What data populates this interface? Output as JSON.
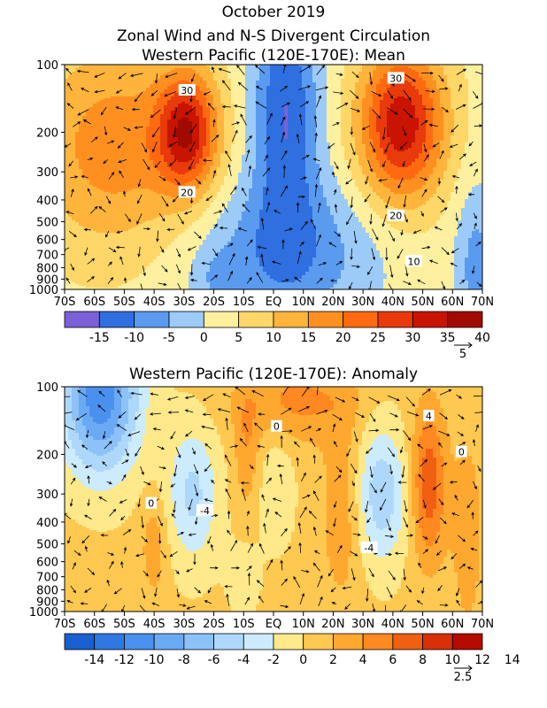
{
  "header": {
    "title1": "October 2019",
    "title2": "Zonal Wind and N-S Divergent Circulation",
    "title3": "Western Pacific (120E-170E): Mean"
  },
  "colors": {
    "mean": [
      "#7b60d8",
      "#2f6fe0",
      "#5a9bf0",
      "#9ccbf8",
      "#fff0a0",
      "#ffd768",
      "#ffb43c",
      "#ff9020",
      "#ff6a10",
      "#e83a0a",
      "#c81400",
      "#a00a00"
    ],
    "anom": [
      "#1a5fcf",
      "#2f77e3",
      "#4a90ee",
      "#6aaaf4",
      "#8dc2f8",
      "#aed8fb",
      "#ccebfd",
      "#ffe98a",
      "#ffc850",
      "#ffa830",
      "#ff8820",
      "#f06010",
      "#d83008",
      "#b40a00"
    ]
  },
  "chart_data": [
    {
      "type": "heatmap",
      "title": "Western Pacific (120E-170E): Mean",
      "x": [
        "70S",
        "60S",
        "50S",
        "40S",
        "30S",
        "20S",
        "10S",
        "EQ",
        "10N",
        "20N",
        "30N",
        "40N",
        "50N",
        "60N",
        "70N"
      ],
      "y_ticks": [
        100,
        200,
        300,
        400,
        500,
        600,
        700,
        800,
        900,
        1000
      ],
      "xlim": [
        -70,
        70
      ],
      "ylim": [
        1000,
        100
      ],
      "y_scale": "log-pressure",
      "contour_labels": [
        {
          "lat": -29,
          "p": 130,
          "text": "30"
        },
        {
          "lat": -29,
          "p": 370,
          "text": "20"
        },
        {
          "lat": 41,
          "p": 115,
          "text": "30"
        },
        {
          "lat": 41,
          "p": 470,
          "text": "20"
        },
        {
          "lat": 47,
          "p": 750,
          "text": "10"
        }
      ],
      "colorbar": {
        "labels": [
          "-15",
          "-10",
          "-5",
          "0",
          "5",
          "10",
          "15",
          "20",
          "25",
          "30",
          "35",
          "40"
        ],
        "values": [
          -15,
          -10,
          -5,
          0,
          5,
          10,
          15,
          20,
          25,
          30,
          35,
          40
        ]
      },
      "vector_ref": "5"
    },
    {
      "type": "heatmap",
      "title": "Western Pacific (120E-170E): Anomaly",
      "x": [
        "70S",
        "60S",
        "50S",
        "40S",
        "30S",
        "20S",
        "10S",
        "EQ",
        "10N",
        "20N",
        "30N",
        "40N",
        "50N",
        "60N",
        "70N"
      ],
      "y_ticks": [
        100,
        200,
        300,
        400,
        500,
        600,
        700,
        800,
        900,
        1000
      ],
      "xlim": [
        -70,
        70
      ],
      "ylim": [
        1000,
        100
      ],
      "y_scale": "log-pressure",
      "contour_labels": [
        {
          "lat": -41,
          "p": 330,
          "text": "0"
        },
        {
          "lat": -23,
          "p": 355,
          "text": "-4"
        },
        {
          "lat": 1,
          "p": 150,
          "text": "0"
        },
        {
          "lat": 32,
          "p": 520,
          "text": "-4"
        },
        {
          "lat": 52,
          "p": 135,
          "text": "4"
        },
        {
          "lat": 63,
          "p": 195,
          "text": "0"
        }
      ],
      "colorbar": {
        "labels": [
          "-14",
          "-12",
          "-10",
          "-8",
          "-6",
          "-4",
          "-2",
          "0",
          "2",
          "4",
          "6",
          "8",
          "10",
          "12",
          "14"
        ],
        "values": [
          -14,
          -12,
          -10,
          -8,
          -6,
          -4,
          -2,
          0,
          2,
          4,
          6,
          8,
          10,
          12,
          14
        ]
      },
      "vector_ref": "2.5"
    }
  ]
}
